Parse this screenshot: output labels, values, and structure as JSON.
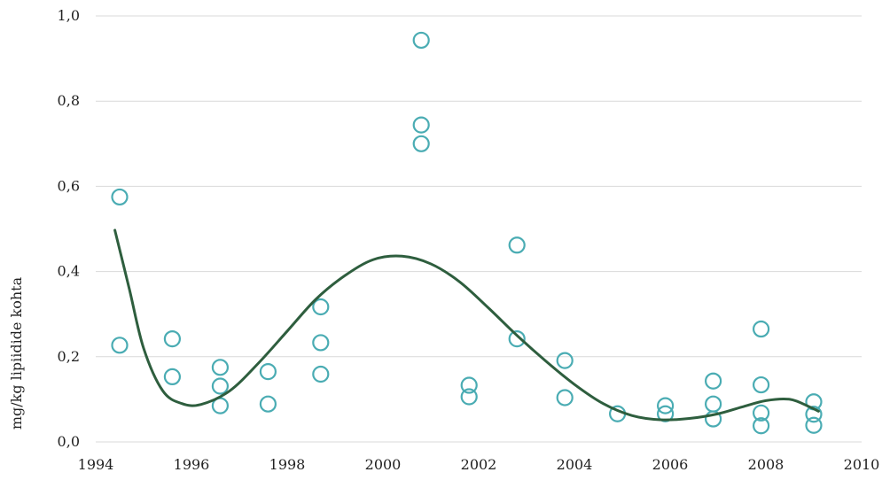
{
  "chart_data": {
    "type": "scatter",
    "title": "",
    "xlabel": "",
    "ylabel": "mg/kg lipiidide kohta",
    "xlim": [
      1994,
      2010
    ],
    "ylim": [
      0,
      1.0
    ],
    "x_ticks": [
      "1994",
      "1996",
      "1998",
      "2000",
      "2002",
      "2004",
      "2006",
      "2008",
      "2010"
    ],
    "y_ticks": [
      "0,0",
      "0,2",
      "0,4",
      "0,6",
      "0,8",
      "1,0"
    ],
    "grid": "horizontal",
    "legend": "none",
    "colors": {
      "points": "#4aacb3",
      "trend": "#2e5e3e",
      "grid": "#d9d9d9"
    },
    "series": [
      {
        "type": "scatter",
        "points": [
          [
            1994.5,
            0.575
          ],
          [
            1994.5,
            0.227
          ],
          [
            1995.6,
            0.242
          ],
          [
            1995.6,
            0.153
          ],
          [
            1996.6,
            0.175
          ],
          [
            1996.6,
            0.131
          ],
          [
            1996.6,
            0.085
          ],
          [
            1997.6,
            0.165
          ],
          [
            1997.6,
            0.089
          ],
          [
            1998.7,
            0.317
          ],
          [
            1998.7,
            0.233
          ],
          [
            1998.7,
            0.159
          ],
          [
            2000.8,
            0.943
          ],
          [
            2000.8,
            0.744
          ],
          [
            2000.8,
            0.7
          ],
          [
            2001.8,
            0.133
          ],
          [
            2001.8,
            0.106
          ],
          [
            2002.8,
            0.462
          ],
          [
            2002.8,
            0.242
          ],
          [
            2003.8,
            0.191
          ],
          [
            2003.8,
            0.104
          ],
          [
            2004.9,
            0.066
          ],
          [
            2005.9,
            0.085
          ],
          [
            2005.9,
            0.066
          ],
          [
            2006.9,
            0.143
          ],
          [
            2006.9,
            0.089
          ],
          [
            2006.9,
            0.054
          ],
          [
            2007.9,
            0.265
          ],
          [
            2007.9,
            0.134
          ],
          [
            2007.9,
            0.068
          ],
          [
            2007.9,
            0.038
          ],
          [
            2009.0,
            0.094
          ],
          [
            2009.0,
            0.065
          ],
          [
            2009.0,
            0.039
          ]
        ]
      },
      {
        "type": "line",
        "smooth": true,
        "points": [
          [
            1994.4,
            0.497
          ],
          [
            1994.7,
            0.36
          ],
          [
            1995.0,
            0.22
          ],
          [
            1995.4,
            0.12
          ],
          [
            1995.8,
            0.09
          ],
          [
            1996.2,
            0.088
          ],
          [
            1996.8,
            0.12
          ],
          [
            1997.4,
            0.185
          ],
          [
            1998.0,
            0.26
          ],
          [
            1998.6,
            0.335
          ],
          [
            1999.2,
            0.39
          ],
          [
            1999.8,
            0.428
          ],
          [
            2000.4,
            0.436
          ],
          [
            2001.0,
            0.418
          ],
          [
            2001.6,
            0.376
          ],
          [
            2002.2,
            0.315
          ],
          [
            2002.8,
            0.25
          ],
          [
            2003.4,
            0.19
          ],
          [
            2004.0,
            0.135
          ],
          [
            2004.6,
            0.09
          ],
          [
            2005.2,
            0.062
          ],
          [
            2005.8,
            0.052
          ],
          [
            2006.4,
            0.055
          ],
          [
            2007.0,
            0.066
          ],
          [
            2007.5,
            0.082
          ],
          [
            2008.0,
            0.097
          ],
          [
            2008.5,
            0.1
          ],
          [
            2008.9,
            0.083
          ],
          [
            2009.1,
            0.072
          ]
        ]
      }
    ]
  }
}
